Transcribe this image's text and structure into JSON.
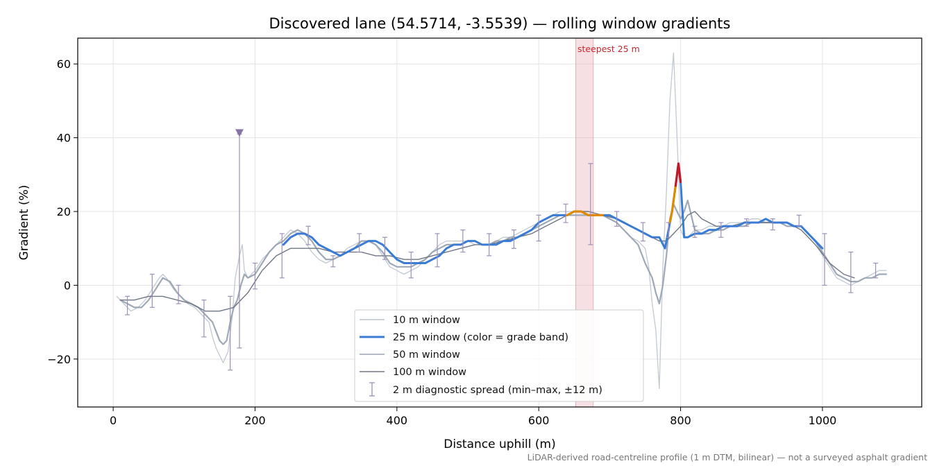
{
  "chart_data": {
    "type": "line",
    "title": "Discovered lane (54.5714, -3.5539) — rolling window gradients",
    "xlabel": "Distance uphill (m)",
    "ylabel": "Gradient (%)",
    "xlim": [
      -50,
      1140
    ],
    "ylim": [
      -33,
      67
    ],
    "xticks": [
      0,
      200,
      400,
      600,
      800,
      1000
    ],
    "yticks": [
      -20,
      0,
      20,
      40,
      60
    ],
    "xtick_labels": [
      "0",
      "200",
      "400",
      "600",
      "800",
      "1000"
    ],
    "ytick_labels": [
      "−20",
      "0",
      "20",
      "40",
      "60"
    ],
    "grid": true,
    "legend_position": "lower center",
    "steepest_band": {
      "label": "steepest 25 m",
      "x": [
        652,
        677
      ],
      "color": "#e8a6ae"
    },
    "outlier_marker": {
      "x": 178,
      "y": 41
    },
    "colors": {
      "w10": "#b9c3cc",
      "w25_default": "#3a7bd5",
      "w25_band_orange": "#e08a00",
      "w25_band_red": "#c0182a",
      "w50": "#98a4b2",
      "w100": "#6e7583",
      "errbar": "#9d8fb5",
      "marker": "#8674a6"
    },
    "series": [
      {
        "name": "10 m window",
        "x": [
          5,
          15,
          25,
          35,
          45,
          55,
          65,
          70,
          75,
          85,
          95,
          105,
          115,
          125,
          135,
          140,
          145,
          155,
          162,
          168,
          172,
          178,
          182,
          185,
          190,
          195,
          200,
          210,
          220,
          230,
          240,
          250,
          260,
          270,
          280,
          290,
          300,
          310,
          320,
          330,
          340,
          350,
          360,
          370,
          380,
          390,
          400,
          410,
          420,
          430,
          440,
          450,
          460,
          470,
          480,
          490,
          500,
          510,
          520,
          530,
          540,
          550,
          560,
          570,
          580,
          590,
          600,
          610,
          620,
          630,
          640,
          650,
          660,
          670,
          680,
          690,
          700,
          710,
          720,
          730,
          740,
          750,
          755,
          760,
          765,
          770,
          775,
          780,
          785,
          790,
          795,
          800,
          805,
          810,
          815,
          820,
          830,
          840,
          850,
          860,
          870,
          880,
          890,
          900,
          910,
          920,
          930,
          940,
          950,
          960,
          970,
          980,
          990,
          1000,
          1010,
          1020,
          1030,
          1040,
          1050,
          1060,
          1070,
          1080,
          1090
        ],
        "values": [
          -3,
          -5,
          -7,
          -6,
          -4,
          -1,
          2,
          3,
          2,
          -1,
          -3,
          -5,
          -6,
          -8,
          -10,
          -14,
          -17,
          -21,
          -18,
          -8,
          2,
          8,
          11,
          4,
          2,
          3,
          4,
          7,
          9,
          11,
          13,
          15,
          14,
          12,
          9,
          7,
          6,
          7,
          8,
          10,
          11,
          12,
          12,
          11,
          8,
          5,
          4,
          3,
          4,
          5,
          7,
          9,
          11,
          12,
          12,
          12,
          12,
          11,
          11,
          11,
          12,
          13,
          13,
          14,
          15,
          16,
          17,
          18,
          19,
          20,
          20,
          20,
          20,
          19,
          19,
          19,
          18,
          17,
          15,
          13,
          12,
          10,
          5,
          -5,
          -12,
          -28,
          5,
          25,
          50,
          63,
          40,
          15,
          13,
          13,
          14,
          15,
          15,
          16,
          16,
          16,
          17,
          17,
          17,
          18,
          18,
          17,
          17,
          17,
          16,
          16,
          16,
          14,
          12,
          8,
          5,
          2,
          1,
          0,
          1,
          2,
          3,
          4,
          4
        ]
      },
      {
        "name": "25 m window (color = grade band)",
        "x": [
          240,
          250,
          260,
          270,
          280,
          290,
          300,
          310,
          320,
          330,
          340,
          350,
          360,
          370,
          380,
          390,
          400,
          410,
          420,
          430,
          440,
          450,
          460,
          470,
          480,
          490,
          500,
          510,
          520,
          530,
          540,
          550,
          560,
          570,
          580,
          590,
          600,
          610,
          620,
          630,
          640,
          650,
          660,
          670,
          680,
          690,
          700,
          710,
          720,
          730,
          740,
          750,
          760,
          770,
          778,
          783,
          788,
          793,
          797,
          800,
          805,
          810,
          820,
          830,
          840,
          850,
          860,
          870,
          880,
          890,
          900,
          910,
          920,
          930,
          940,
          950,
          960,
          970,
          980,
          990,
          1000
        ],
        "values": [
          11,
          13,
          14,
          14,
          13,
          11,
          10,
          9,
          8,
          9,
          10,
          11,
          12,
          12,
          11,
          9,
          7,
          6,
          6,
          6,
          6,
          7,
          8,
          10,
          11,
          11,
          12,
          12,
          11,
          11,
          11,
          12,
          12,
          13,
          14,
          15,
          17,
          18,
          19,
          19,
          19,
          20,
          20,
          19,
          19,
          19,
          19,
          18,
          17,
          16,
          15,
          14,
          13,
          13,
          10,
          15,
          20,
          27,
          33,
          28,
          13,
          13,
          14,
          14,
          15,
          15,
          16,
          16,
          16,
          17,
          17,
          17,
          18,
          17,
          17,
          17,
          16,
          16,
          14,
          12,
          10
        ],
        "band_segments": [
          {
            "color": "orange",
            "x": [
              640,
              675
            ]
          },
          {
            "color": "orange",
            "x": [
              675,
              690
            ]
          },
          {
            "color": "orange",
            "x": [
              785,
              793
            ]
          },
          {
            "color": "red",
            "x": [
              793,
              800
            ]
          }
        ]
      },
      {
        "name": "50 m window",
        "x": [
          10,
          20,
          30,
          40,
          50,
          60,
          70,
          80,
          90,
          100,
          110,
          120,
          130,
          140,
          150,
          155,
          160,
          165,
          170,
          175,
          180,
          185,
          190,
          200,
          210,
          220,
          230,
          240,
          250,
          260,
          270,
          280,
          290,
          300,
          310,
          320,
          330,
          340,
          350,
          360,
          370,
          380,
          390,
          400,
          410,
          420,
          430,
          440,
          450,
          460,
          470,
          480,
          490,
          500,
          510,
          520,
          530,
          540,
          550,
          560,
          570,
          580,
          590,
          600,
          610,
          620,
          630,
          640,
          650,
          660,
          670,
          680,
          690,
          700,
          710,
          720,
          730,
          740,
          750,
          760,
          765,
          770,
          775,
          780,
          785,
          790,
          795,
          800,
          805,
          810,
          820,
          830,
          840,
          850,
          860,
          870,
          880,
          890,
          900,
          910,
          920,
          930,
          940,
          950,
          960,
          970,
          980,
          990,
          1000,
          1010,
          1020,
          1030,
          1040,
          1050,
          1060,
          1070,
          1080,
          1090
        ],
        "values": [
          -4,
          -5,
          -6,
          -6,
          -4,
          -1,
          2,
          1,
          -2,
          -4,
          -5,
          -6,
          -8,
          -10,
          -15,
          -16,
          -15,
          -10,
          -6,
          -4,
          0,
          3,
          2,
          3,
          6,
          9,
          11,
          12,
          14,
          15,
          14,
          12,
          9,
          7,
          7,
          8,
          9,
          10,
          12,
          12,
          11,
          9,
          6,
          5,
          5,
          5,
          6,
          7,
          9,
          10,
          11,
          11,
          11,
          12,
          12,
          11,
          11,
          12,
          12,
          13,
          13,
          14,
          15,
          16,
          17,
          18,
          19,
          19,
          19,
          19,
          19,
          19,
          19,
          18,
          17,
          15,
          13,
          11,
          6,
          2,
          -2,
          -5,
          0,
          8,
          18,
          22,
          20,
          18,
          20,
          23,
          15,
          14,
          14,
          15,
          15,
          16,
          16,
          16,
          17,
          17,
          17,
          17,
          17,
          16,
          16,
          16,
          14,
          12,
          9,
          6,
          3,
          2,
          1,
          1,
          2,
          2,
          3,
          3
        ]
      },
      {
        "name": "100 m window",
        "x": [
          10,
          30,
          50,
          70,
          90,
          110,
          130,
          150,
          170,
          190,
          210,
          230,
          250,
          270,
          290,
          310,
          330,
          350,
          370,
          390,
          410,
          430,
          450,
          470,
          490,
          510,
          530,
          550,
          570,
          590,
          610,
          630,
          650,
          670,
          690,
          710,
          720,
          730,
          740,
          750,
          760,
          770,
          780,
          790,
          800,
          810,
          820,
          830,
          850,
          870,
          890,
          910,
          930,
          950,
          970,
          990,
          1010,
          1030,
          1045
        ],
        "values": [
          -4,
          -4,
          -3,
          -3,
          -4,
          -5,
          -7,
          -7,
          -6,
          -2,
          4,
          8,
          10,
          10,
          10,
          9,
          9,
          9,
          8,
          8,
          7,
          7,
          8,
          9,
          10,
          11,
          11,
          12,
          13,
          14,
          16,
          18,
          20,
          20,
          19,
          18,
          17,
          16,
          15,
          14,
          13,
          12,
          12,
          14,
          16,
          19,
          20,
          18,
          16,
          16,
          17,
          17,
          17,
          17,
          15,
          11,
          6,
          3,
          2
        ]
      }
    ],
    "diagnostic_spread": {
      "name": "2 m diagnostic spread (min–max, ±12 m)",
      "points": [
        {
          "x": 20,
          "min": -8,
          "max": -3
        },
        {
          "x": 55,
          "min": -6,
          "max": 3
        },
        {
          "x": 92,
          "min": -5,
          "max": 0
        },
        {
          "x": 128,
          "min": -14,
          "max": -4
        },
        {
          "x": 165,
          "min": -23,
          "max": -3
        },
        {
          "x": 178,
          "min": -17,
          "max": 41
        },
        {
          "x": 200,
          "min": -1,
          "max": 6
        },
        {
          "x": 238,
          "min": 2,
          "max": 14
        },
        {
          "x": 275,
          "min": 11,
          "max": 16
        },
        {
          "x": 310,
          "min": 5,
          "max": 8
        },
        {
          "x": 347,
          "min": 9,
          "max": 14
        },
        {
          "x": 383,
          "min": 7,
          "max": 13
        },
        {
          "x": 420,
          "min": 2,
          "max": 9
        },
        {
          "x": 457,
          "min": 5,
          "max": 14
        },
        {
          "x": 493,
          "min": 9,
          "max": 15
        },
        {
          "x": 530,
          "min": 8,
          "max": 14
        },
        {
          "x": 565,
          "min": 10,
          "max": 15
        },
        {
          "x": 600,
          "min": 12,
          "max": 19
        },
        {
          "x": 638,
          "min": 17,
          "max": 22
        },
        {
          "x": 673,
          "min": 11,
          "max": 33
        },
        {
          "x": 710,
          "min": 16,
          "max": 20
        },
        {
          "x": 747,
          "min": 12,
          "max": 17
        },
        {
          "x": 783,
          "min": 13,
          "max": 17
        },
        {
          "x": 820,
          "min": 13,
          "max": 16
        },
        {
          "x": 857,
          "min": 13,
          "max": 17
        },
        {
          "x": 893,
          "min": 16,
          "max": 18
        },
        {
          "x": 930,
          "min": 15,
          "max": 18
        },
        {
          "x": 967,
          "min": 16,
          "max": 19
        },
        {
          "x": 1003,
          "min": 0,
          "max": 14
        },
        {
          "x": 1040,
          "min": -2,
          "max": 9
        },
        {
          "x": 1075,
          "min": 2,
          "max": 6
        }
      ]
    },
    "legend": [
      "10 m window",
      "25 m window (color = grade band)",
      "50 m window",
      "100 m window",
      "2 m diagnostic spread (min–max, ±12 m)"
    ],
    "footnote": "LiDAR-derived road-centreline profile (1 m DTM, bilinear) — not a surveyed asphalt gradient"
  }
}
